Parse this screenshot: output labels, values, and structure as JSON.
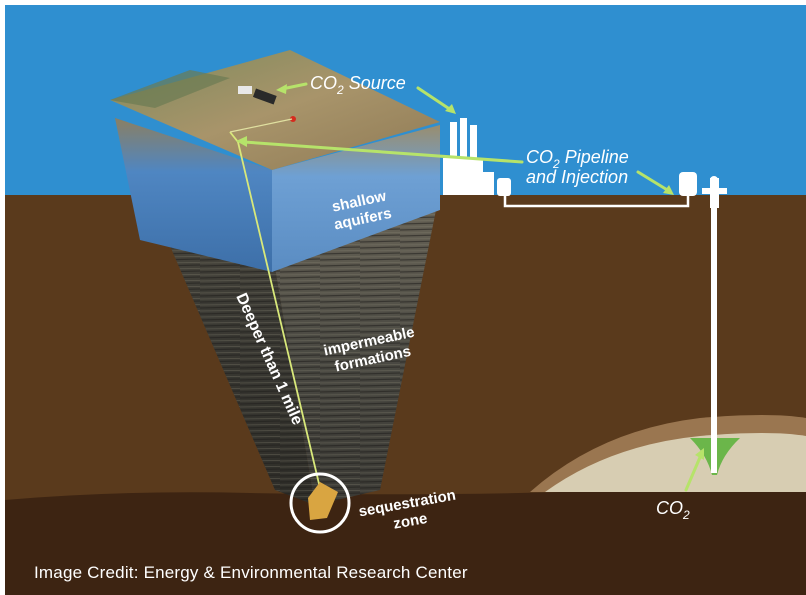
{
  "labels": {
    "co2_source": "CO",
    "co2_source_sub": "2",
    "co2_source_tail": " Source",
    "pipeline_line1_a": "CO",
    "pipeline_line1_sub": "2",
    "pipeline_line1_b": " Pipeline",
    "pipeline_line2": "and Injection",
    "shallow_line1": "shallow",
    "shallow_line2": "aquifers",
    "impermeable_line1": "impermeable",
    "impermeable_line2": "formations",
    "depth": "Deeper than 1 mile",
    "sequestration_line1": "sequestration",
    "sequestration_line2": "zone",
    "co2_plume": "CO",
    "co2_plume_sub": "2"
  },
  "credit": "Image Credit: Energy & Environmental Research Center",
  "colors": {
    "sky": "#2f8fd0",
    "ground": "#5a3a1c",
    "deep_ground": "#3d2412",
    "arrow": "#b6e36a",
    "white": "#ffffff"
  }
}
